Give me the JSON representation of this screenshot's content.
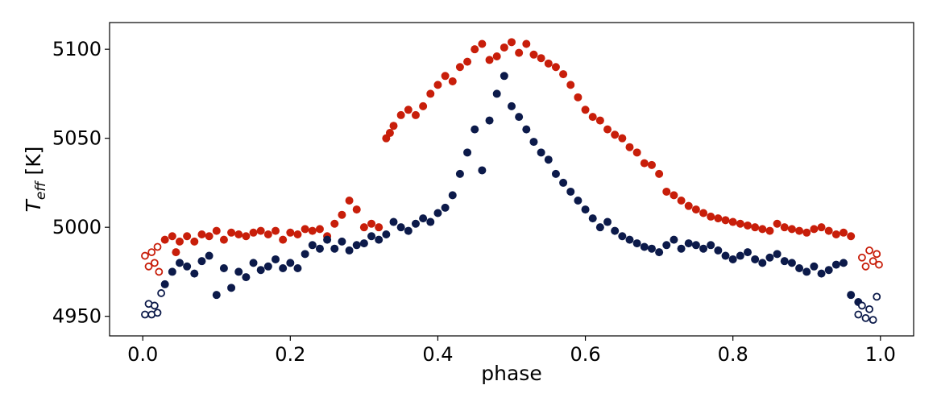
{
  "chart_data": {
    "type": "scatter",
    "xlabel": "phase",
    "ylabel": {
      "main": "T",
      "sub": "eff",
      "unit": " [K]"
    },
    "xlim": [
      -0.045,
      1.045
    ],
    "ylim": [
      4939,
      5115
    ],
    "xticks": [
      0.0,
      0.2,
      0.4,
      0.6,
      0.8,
      1.0
    ],
    "xtick_labels": [
      "0.0",
      "0.2",
      "0.4",
      "0.6",
      "0.8",
      "1.0"
    ],
    "yticks": [
      4950,
      5000,
      5050,
      5100
    ],
    "ytick_labels": [
      "4950",
      "5000",
      "5050",
      "5100"
    ],
    "grid": false,
    "series": [
      {
        "color": "#c81e0a",
        "filled": [
          [
            0.03,
            4993
          ],
          [
            0.04,
            4995
          ],
          [
            0.045,
            4986
          ],
          [
            0.05,
            4992
          ],
          [
            0.06,
            4995
          ],
          [
            0.07,
            4992
          ],
          [
            0.08,
            4996
          ],
          [
            0.09,
            4995
          ],
          [
            0.1,
            4998
          ],
          [
            0.11,
            4993
          ],
          [
            0.12,
            4997
          ],
          [
            0.13,
            4996
          ],
          [
            0.14,
            4995
          ],
          [
            0.15,
            4997
          ],
          [
            0.16,
            4998
          ],
          [
            0.17,
            4996
          ],
          [
            0.18,
            4998
          ],
          [
            0.19,
            4993
          ],
          [
            0.2,
            4997
          ],
          [
            0.21,
            4996
          ],
          [
            0.22,
            4999
          ],
          [
            0.23,
            4998
          ],
          [
            0.24,
            4999
          ],
          [
            0.25,
            4995
          ],
          [
            0.26,
            5002
          ],
          [
            0.27,
            5007
          ],
          [
            0.28,
            5015
          ],
          [
            0.29,
            5010
          ],
          [
            0.3,
            5000
          ],
          [
            0.31,
            5002
          ],
          [
            0.32,
            5000
          ],
          [
            0.33,
            5050
          ],
          [
            0.335,
            5053
          ],
          [
            0.34,
            5057
          ],
          [
            0.35,
            5063
          ],
          [
            0.36,
            5066
          ],
          [
            0.37,
            5063
          ],
          [
            0.38,
            5068
          ],
          [
            0.39,
            5075
          ],
          [
            0.4,
            5080
          ],
          [
            0.41,
            5085
          ],
          [
            0.42,
            5082
          ],
          [
            0.43,
            5090
          ],
          [
            0.44,
            5093
          ],
          [
            0.45,
            5100
          ],
          [
            0.46,
            5103
          ],
          [
            0.47,
            5094
          ],
          [
            0.48,
            5096
          ],
          [
            0.49,
            5101
          ],
          [
            0.5,
            5104
          ],
          [
            0.51,
            5098
          ],
          [
            0.52,
            5103
          ],
          [
            0.53,
            5097
          ],
          [
            0.54,
            5095
          ],
          [
            0.55,
            5092
          ],
          [
            0.56,
            5090
          ],
          [
            0.57,
            5086
          ],
          [
            0.58,
            5080
          ],
          [
            0.59,
            5073
          ],
          [
            0.6,
            5066
          ],
          [
            0.61,
            5062
          ],
          [
            0.62,
            5060
          ],
          [
            0.63,
            5055
          ],
          [
            0.64,
            5052
          ],
          [
            0.65,
            5050
          ],
          [
            0.66,
            5045
          ],
          [
            0.67,
            5042
          ],
          [
            0.68,
            5036
          ],
          [
            0.69,
            5035
          ],
          [
            0.7,
            5030
          ],
          [
            0.71,
            5020
          ],
          [
            0.72,
            5018
          ],
          [
            0.73,
            5015
          ],
          [
            0.74,
            5012
          ],
          [
            0.75,
            5010
          ],
          [
            0.76,
            5008
          ],
          [
            0.77,
            5006
          ],
          [
            0.78,
            5005
          ],
          [
            0.79,
            5004
          ],
          [
            0.8,
            5003
          ],
          [
            0.81,
            5002
          ],
          [
            0.82,
            5001
          ],
          [
            0.83,
            5000
          ],
          [
            0.84,
            4999
          ],
          [
            0.85,
            4998
          ],
          [
            0.86,
            5002
          ],
          [
            0.87,
            5000
          ],
          [
            0.88,
            4999
          ],
          [
            0.89,
            4998
          ],
          [
            0.9,
            4997
          ],
          [
            0.91,
            4999
          ],
          [
            0.92,
            5000
          ],
          [
            0.93,
            4998
          ],
          [
            0.94,
            4996
          ],
          [
            0.95,
            4997
          ],
          [
            0.96,
            4995
          ]
        ],
        "open": [
          [
            0.003,
            4984
          ],
          [
            0.008,
            4978
          ],
          [
            0.012,
            4986
          ],
          [
            0.016,
            4980
          ],
          [
            0.02,
            4989
          ],
          [
            0.022,
            4975
          ],
          [
            0.975,
            4983
          ],
          [
            0.98,
            4978
          ],
          [
            0.985,
            4987
          ],
          [
            0.99,
            4981
          ],
          [
            0.995,
            4985
          ],
          [
            0.998,
            4979
          ]
        ]
      },
      {
        "color": "#0c1a4a",
        "filled": [
          [
            0.03,
            4968
          ],
          [
            0.04,
            4975
          ],
          [
            0.05,
            4980
          ],
          [
            0.06,
            4978
          ],
          [
            0.07,
            4974
          ],
          [
            0.08,
            4981
          ],
          [
            0.09,
            4984
          ],
          [
            0.1,
            4962
          ],
          [
            0.11,
            4977
          ],
          [
            0.12,
            4966
          ],
          [
            0.13,
            4975
          ],
          [
            0.14,
            4972
          ],
          [
            0.15,
            4980
          ],
          [
            0.16,
            4976
          ],
          [
            0.17,
            4978
          ],
          [
            0.18,
            4982
          ],
          [
            0.19,
            4977
          ],
          [
            0.2,
            4980
          ],
          [
            0.21,
            4977
          ],
          [
            0.22,
            4985
          ],
          [
            0.23,
            4990
          ],
          [
            0.24,
            4988
          ],
          [
            0.25,
            4993
          ],
          [
            0.26,
            4988
          ],
          [
            0.27,
            4992
          ],
          [
            0.28,
            4987
          ],
          [
            0.29,
            4990
          ],
          [
            0.3,
            4991
          ],
          [
            0.31,
            4995
          ],
          [
            0.32,
            4993
          ],
          [
            0.33,
            4996
          ],
          [
            0.34,
            5003
          ],
          [
            0.35,
            5000
          ],
          [
            0.36,
            4998
          ],
          [
            0.37,
            5002
          ],
          [
            0.38,
            5005
          ],
          [
            0.39,
            5003
          ],
          [
            0.4,
            5008
          ],
          [
            0.41,
            5011
          ],
          [
            0.42,
            5018
          ],
          [
            0.43,
            5030
          ],
          [
            0.44,
            5042
          ],
          [
            0.45,
            5055
          ],
          [
            0.46,
            5032
          ],
          [
            0.47,
            5060
          ],
          [
            0.48,
            5075
          ],
          [
            0.49,
            5085
          ],
          [
            0.5,
            5068
          ],
          [
            0.51,
            5062
          ],
          [
            0.52,
            5055
          ],
          [
            0.53,
            5048
          ],
          [
            0.54,
            5042
          ],
          [
            0.55,
            5038
          ],
          [
            0.56,
            5030
          ],
          [
            0.57,
            5025
          ],
          [
            0.58,
            5020
          ],
          [
            0.59,
            5015
          ],
          [
            0.6,
            5010
          ],
          [
            0.61,
            5005
          ],
          [
            0.62,
            5000
          ],
          [
            0.63,
            5003
          ],
          [
            0.64,
            4998
          ],
          [
            0.65,
            4995
          ],
          [
            0.66,
            4993
          ],
          [
            0.67,
            4991
          ],
          [
            0.68,
            4989
          ],
          [
            0.69,
            4988
          ],
          [
            0.7,
            4986
          ],
          [
            0.71,
            4990
          ],
          [
            0.72,
            4993
          ],
          [
            0.73,
            4988
          ],
          [
            0.74,
            4991
          ],
          [
            0.75,
            4990
          ],
          [
            0.76,
            4988
          ],
          [
            0.77,
            4990
          ],
          [
            0.78,
            4987
          ],
          [
            0.79,
            4984
          ],
          [
            0.8,
            4982
          ],
          [
            0.81,
            4984
          ],
          [
            0.82,
            4986
          ],
          [
            0.83,
            4982
          ],
          [
            0.84,
            4980
          ],
          [
            0.85,
            4983
          ],
          [
            0.86,
            4985
          ],
          [
            0.87,
            4981
          ],
          [
            0.88,
            4980
          ],
          [
            0.89,
            4977
          ],
          [
            0.9,
            4975
          ],
          [
            0.91,
            4978
          ],
          [
            0.92,
            4974
          ],
          [
            0.93,
            4976
          ],
          [
            0.94,
            4979
          ],
          [
            0.95,
            4980
          ],
          [
            0.96,
            4962
          ],
          [
            0.97,
            4958
          ]
        ],
        "open": [
          [
            0.003,
            4951
          ],
          [
            0.008,
            4957
          ],
          [
            0.012,
            4951
          ],
          [
            0.016,
            4956
          ],
          [
            0.02,
            4952
          ],
          [
            0.025,
            4963
          ],
          [
            0.97,
            4951
          ],
          [
            0.975,
            4956
          ],
          [
            0.98,
            4949
          ],
          [
            0.985,
            4954
          ],
          [
            0.99,
            4948
          ],
          [
            0.995,
            4961
          ]
        ]
      }
    ]
  }
}
